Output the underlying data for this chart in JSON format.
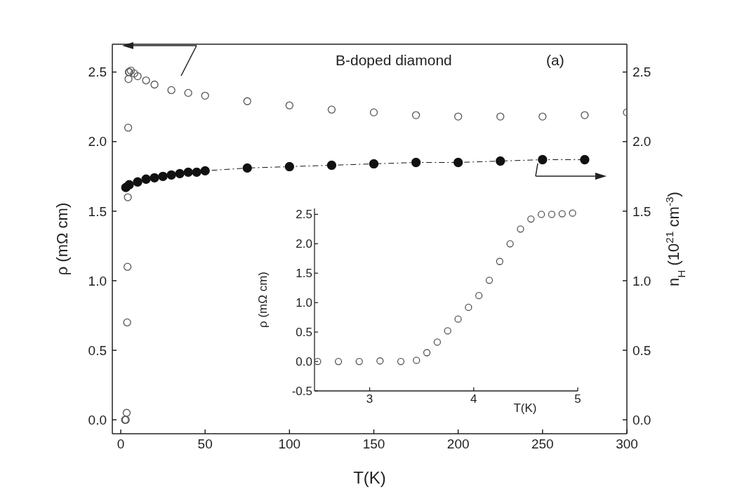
{
  "chart_data": [
    {
      "type": "scatter",
      "title": "B-doped diamond",
      "xlabel": "T(K)",
      "ylabel": "ρ (mΩ cm)",
      "y2label": "n$_{H}$ (10$^{21}$ cm$^{-3}$)",
      "annotations": [
        "(a)"
      ],
      "marker": "circle",
      "xlim": [
        -5,
        300
      ],
      "xticks": [
        0,
        50,
        100,
        150,
        200,
        250,
        300
      ],
      "ylim": [
        -0.1,
        2.7
      ],
      "yticks": [
        {
          "value": 0,
          "label": "0.0"
        },
        {
          "value": 0.5,
          "label": "0.5"
        },
        {
          "value": 1,
          "label": "1.0"
        },
        {
          "value": 1.5,
          "label": "1.5"
        },
        {
          "value": 2,
          "label": "2.0"
        },
        {
          "value": 2.5,
          "label": "2.5"
        }
      ],
      "y2lim": [
        -0.1,
        2.7
      ],
      "y2ticks": [
        {
          "value": 0,
          "label": "0.0"
        },
        {
          "value": 0.5,
          "label": "0.5"
        },
        {
          "value": 1,
          "label": "1.0"
        },
        {
          "value": 1.5,
          "label": "1.5"
        },
        {
          "value": 2,
          "label": "2.0"
        },
        {
          "value": 2.5,
          "label": "2.5"
        }
      ],
      "series": [
        {
          "type": "scatter",
          "color": "#555555",
          "x": [
            2.5,
            3,
            3.5,
            3.8,
            4,
            4.2,
            4.4,
            4.6,
            4.8,
            5,
            6,
            8,
            10,
            15,
            20,
            30,
            40,
            50,
            75,
            100,
            125,
            150,
            175,
            200,
            225,
            250,
            275,
            300
          ],
          "values": [
            0,
            0,
            0.05,
            0.7,
            1.1,
            1.6,
            2.1,
            2.45,
            2.5,
            2.5,
            2.51,
            2.49,
            2.47,
            2.44,
            2.41,
            2.37,
            2.35,
            2.33,
            2.29,
            2.26,
            2.23,
            2.21,
            2.19,
            2.18,
            2.18,
            2.18,
            2.19,
            2.21
          ]
        },
        {
          "type": "line",
          "axis": "y2",
          "color": "#111111",
          "marker": "circle",
          "line_style": "dashed",
          "x": [
            3,
            5,
            10,
            15,
            20,
            25,
            30,
            35,
            40,
            45,
            50,
            75,
            100,
            125,
            150,
            175,
            200,
            225,
            250,
            275
          ],
          "values": [
            1.67,
            1.69,
            1.71,
            1.73,
            1.74,
            1.75,
            1.76,
            1.77,
            1.78,
            1.78,
            1.79,
            1.81,
            1.82,
            1.83,
            1.84,
            1.85,
            1.85,
            1.86,
            1.87,
            1.87
          ]
        }
      ]
    },
    {
      "type": "scatter",
      "xlabel": "T(K)",
      "ylabel": "ρ (mΩ cm)",
      "marker": "circle",
      "color": "#555555",
      "xlim": [
        2.47,
        5
      ],
      "xticks": [
        3,
        4,
        5
      ],
      "ylim": [
        -0.5,
        2.6
      ],
      "yticks": [
        {
          "value": -0.5,
          "label": "-0.5"
        },
        {
          "value": 0,
          "label": "0.0"
        },
        {
          "value": 0.5,
          "label": "0.5"
        },
        {
          "value": 1,
          "label": "1.0"
        },
        {
          "value": 1.5,
          "label": "1.5"
        },
        {
          "value": 2,
          "label": "2.0"
        },
        {
          "value": 2.5,
          "label": "2.5"
        }
      ],
      "x": [
        2.5,
        2.7,
        2.9,
        3.1,
        3.3,
        3.45,
        3.55,
        3.65,
        3.75,
        3.85,
        3.95,
        4.05,
        4.15,
        4.25,
        4.35,
        4.45,
        4.55,
        4.65,
        4.75,
        4.85,
        4.95
      ],
      "values": [
        0,
        0,
        0,
        0.01,
        0,
        0.02,
        0.15,
        0.33,
        0.52,
        0.72,
        0.92,
        1.12,
        1.38,
        1.7,
        2.0,
        2.25,
        2.42,
        2.5,
        2.5,
        2.51,
        2.52
      ]
    }
  ]
}
